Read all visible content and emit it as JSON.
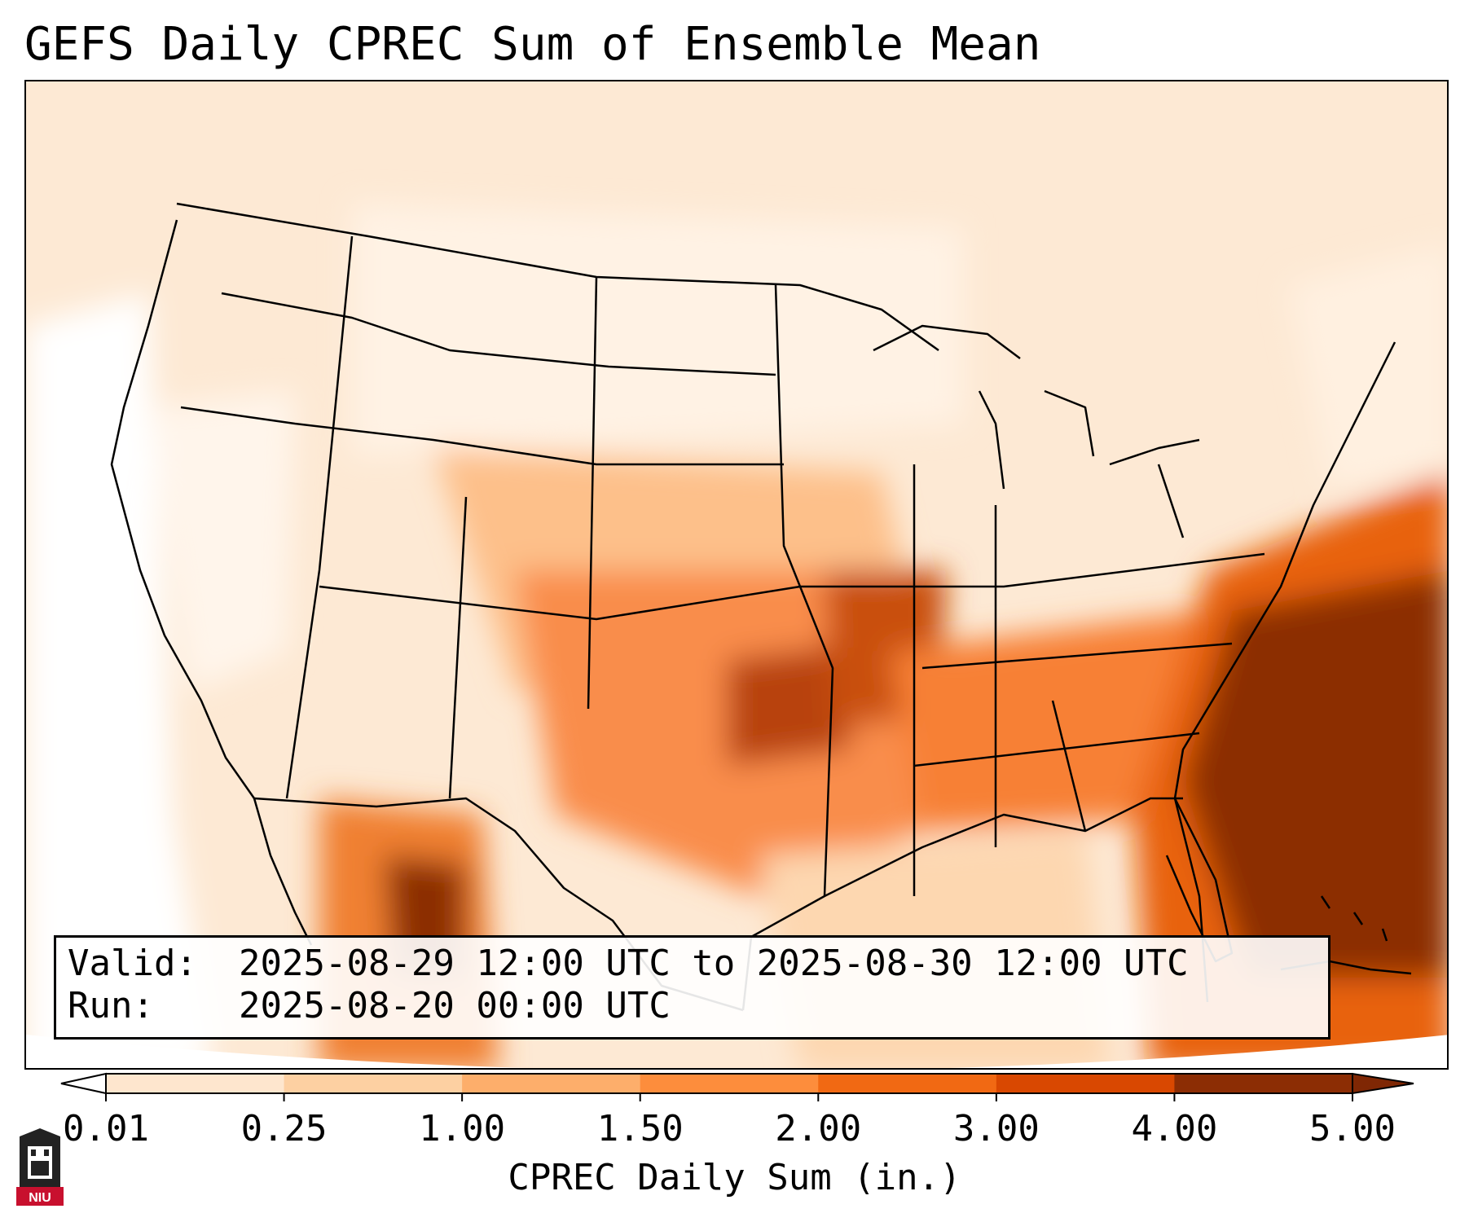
{
  "title": "GEFS Daily CPREC Sum of Ensemble Mean",
  "info": {
    "valid_key": "Valid:",
    "valid_value": "2025-08-29 12:00 UTC to 2025-08-30 12:00 UTC",
    "run_key": "Run:",
    "run_value": "2025-08-20 00:00 UTC"
  },
  "colorbar": {
    "label": "CPREC Daily Sum (in.)",
    "ticks": [
      "0.01",
      "0.25",
      "1.00",
      "1.50",
      "2.00",
      "3.00",
      "4.00",
      "5.00"
    ],
    "colors": [
      "#fff5eb",
      "#fee6ce",
      "#fdd0a2",
      "#fdae6b",
      "#fd8d3c",
      "#f16913",
      "#d94801",
      "#8c2d04"
    ],
    "under_color": "#ffffff",
    "over_color": "#7f2704"
  },
  "logo": {
    "text": "NIU"
  }
}
